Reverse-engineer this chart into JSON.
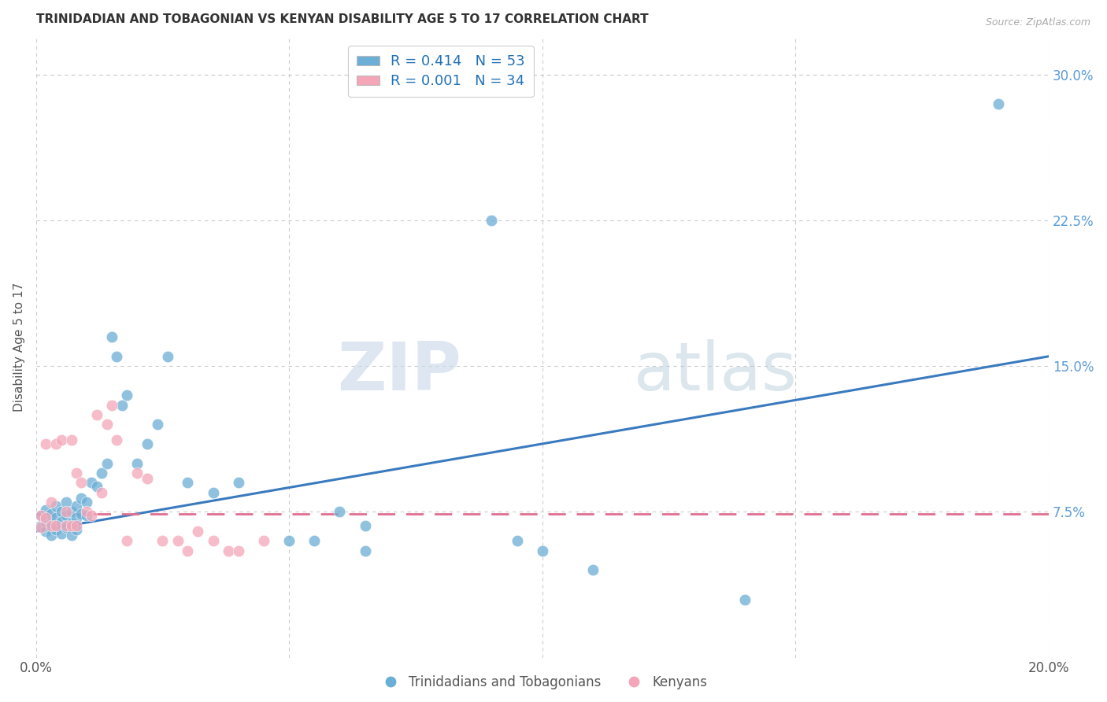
{
  "title": "TRINIDADIAN AND TOBAGONIAN VS KENYAN DISABILITY AGE 5 TO 17 CORRELATION CHART",
  "source": "Source: ZipAtlas.com",
  "ylabel": "Disability Age 5 to 17",
  "xlim": [
    0.0,
    0.2
  ],
  "ylim": [
    0.0,
    0.32
  ],
  "grid_color": "#cccccc",
  "background_color": "#ffffff",
  "blue_color": "#6baed6",
  "pink_color": "#f4a6b8",
  "blue_line_color": "#3a7abf",
  "pink_line_color": "#e07090",
  "r_blue": 0.414,
  "n_blue": 53,
  "r_pink": 0.001,
  "n_pink": 34,
  "legend_label_blue": "Trinidadians and Tobagonians",
  "legend_label_pink": "Kenyans",
  "blue_trend_x0": 0.0,
  "blue_trend_y0": 0.065,
  "blue_trend_x1": 0.2,
  "blue_trend_y1": 0.155,
  "pink_trend_x0": 0.0,
  "pink_trend_y0": 0.074,
  "pink_trend_x1": 0.2,
  "pink_trend_y1": 0.074,
  "blue_x": [
    0.001,
    0.001,
    0.002,
    0.002,
    0.002,
    0.003,
    0.003,
    0.003,
    0.004,
    0.004,
    0.004,
    0.005,
    0.005,
    0.005,
    0.006,
    0.006,
    0.006,
    0.007,
    0.007,
    0.007,
    0.008,
    0.008,
    0.008,
    0.009,
    0.009,
    0.01,
    0.01,
    0.011,
    0.012,
    0.013,
    0.014,
    0.015,
    0.016,
    0.017,
    0.018,
    0.02,
    0.022,
    0.024,
    0.026,
    0.03,
    0.035,
    0.04,
    0.05,
    0.055,
    0.06,
    0.065,
    0.065,
    0.09,
    0.095,
    0.1,
    0.11,
    0.14,
    0.19
  ],
  "blue_y": [
    0.073,
    0.068,
    0.076,
    0.07,
    0.065,
    0.074,
    0.069,
    0.063,
    0.078,
    0.072,
    0.066,
    0.075,
    0.07,
    0.064,
    0.08,
    0.073,
    0.067,
    0.075,
    0.069,
    0.063,
    0.078,
    0.072,
    0.066,
    0.082,
    0.074,
    0.08,
    0.073,
    0.09,
    0.088,
    0.095,
    0.1,
    0.165,
    0.155,
    0.13,
    0.135,
    0.1,
    0.11,
    0.12,
    0.155,
    0.09,
    0.085,
    0.09,
    0.06,
    0.06,
    0.075,
    0.068,
    0.055,
    0.225,
    0.06,
    0.055,
    0.045,
    0.03,
    0.285
  ],
  "pink_x": [
    0.001,
    0.001,
    0.002,
    0.002,
    0.003,
    0.003,
    0.004,
    0.004,
    0.005,
    0.006,
    0.006,
    0.007,
    0.007,
    0.008,
    0.008,
    0.009,
    0.01,
    0.011,
    0.012,
    0.013,
    0.014,
    0.015,
    0.016,
    0.018,
    0.02,
    0.022,
    0.025,
    0.028,
    0.03,
    0.032,
    0.035,
    0.038,
    0.04,
    0.045
  ],
  "pink_y": [
    0.073,
    0.067,
    0.11,
    0.072,
    0.08,
    0.068,
    0.11,
    0.068,
    0.112,
    0.075,
    0.068,
    0.112,
    0.068,
    0.095,
    0.068,
    0.09,
    0.075,
    0.073,
    0.125,
    0.085,
    0.12,
    0.13,
    0.112,
    0.06,
    0.095,
    0.092,
    0.06,
    0.06,
    0.055,
    0.065,
    0.06,
    0.055,
    0.055,
    0.06
  ]
}
